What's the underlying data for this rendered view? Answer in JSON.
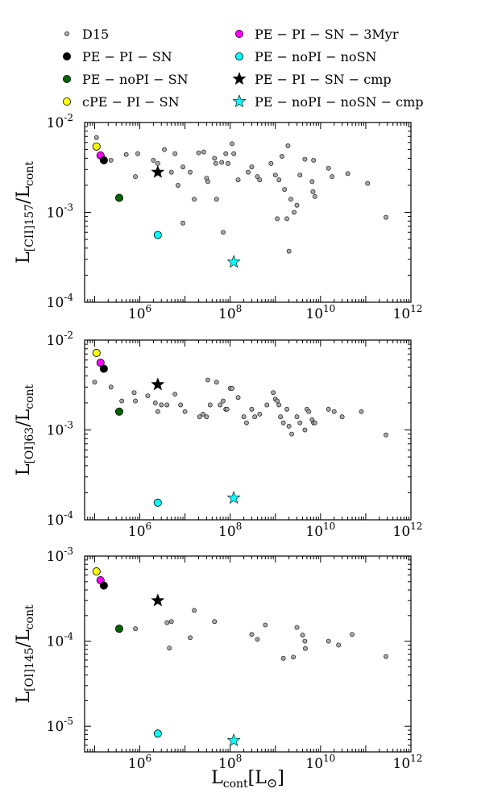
{
  "legend": [
    {
      "key": "d15",
      "label": "D15",
      "marker": "circle",
      "color": "#a9a9a9",
      "size": "small"
    },
    {
      "key": "pe_pi_sn_3myr",
      "label": "PE − PI − SN − 3Myr",
      "marker": "circle",
      "color": "#ff00ff",
      "size": "large"
    },
    {
      "key": "pe_pi_sn",
      "label": "PE − PI − SN",
      "marker": "circle",
      "color": "#000000",
      "size": "large"
    },
    {
      "key": "pe_nopi_nosn",
      "label": "PE − noPI − noSN",
      "marker": "circle",
      "color": "#00ffff",
      "size": "large"
    },
    {
      "key": "pe_nopi_sn",
      "label": "PE − noPI − SN",
      "marker": "circle",
      "color": "#006400",
      "size": "large"
    },
    {
      "key": "pe_pi_sn_cmp",
      "label": "PE − PI − SN − cmp",
      "marker": "star",
      "color": "#000000",
      "size": "large"
    },
    {
      "key": "cpe_pi_sn",
      "label": "cPE − PI − SN",
      "marker": "circle",
      "color": "#ffff00",
      "size": "large"
    },
    {
      "key": "pe_nopi_nosn_cmp",
      "label": "PE − noPI − noSN − cmp",
      "marker": "star",
      "color": "#00ffff",
      "size": "large"
    }
  ],
  "chart_data": [
    {
      "type": "scatter",
      "id": "cii157",
      "ylabel_main": "L",
      "ylabel_sub": "[CII]157",
      "ylabel_rest": "/L",
      "ylabel_rest_sub": "cont",
      "xscale": "log",
      "yscale": "log",
      "xlim": [
        60000,
        1000000000000
      ],
      "ylim": [
        0.0001,
        0.01
      ],
      "xticks": [
        "10^6",
        "10^8",
        "10^10",
        "10^12"
      ],
      "yticks": [
        "10^-4",
        "10^-3",
        "10^-2"
      ],
      "series": [
        {
          "key": "d15",
          "points": [
            [
              110000.0,
              0.0068
            ],
            [
              150000.0,
              0.0038
            ],
            [
              230000.0,
              0.0038
            ],
            [
              500000.0,
              0.0044
            ],
            [
              800000.0,
              0.0025
            ],
            [
              900000.0,
              0.0045
            ],
            [
              2000000.0,
              0.0038
            ],
            [
              2500000.0,
              0.0035
            ],
            [
              3500000.0,
              0.005
            ],
            [
              5000000.0,
              0.0028
            ],
            [
              7000000.0,
              0.002
            ],
            [
              13000000.0,
              0.0028
            ],
            [
              16000000.0,
              0.0014
            ],
            [
              20000000.0,
              0.0046
            ],
            [
              45000000.0,
              0.004
            ],
            [
              48000000.0,
              0.0035
            ],
            [
              50000000.0,
              0.0014
            ],
            [
              65000000.0,
              0.0036
            ],
            [
              6000000.0,
              0.0045
            ],
            [
              9000000.0,
              0.0032
            ],
            [
              26000000.0,
              0.0047
            ],
            [
              30000000.0,
              0.0024
            ],
            [
              32000000.0,
              0.0022
            ],
            [
              9000000.0,
              0.00076
            ],
            [
              70000000.0,
              0.0006
            ],
            [
              80000000.0,
              0.0045
            ],
            [
              90000000.0,
              0.0035
            ],
            [
              110000000.0,
              0.0058
            ],
            [
              120000000.0,
              0.0045
            ],
            [
              150000000.0,
              0.0023
            ],
            [
              250000000.0,
              0.0028
            ],
            [
              300000000.0,
              0.0032
            ],
            [
              400000000.0,
              0.0025
            ],
            [
              450000000.0,
              0.0023
            ],
            [
              800000000.0,
              0.0035
            ],
            [
              1000000000.0,
              0.0026
            ],
            [
              1100000000.0,
              0.00085
            ],
            [
              1200000000.0,
              0.0023
            ],
            [
              1400000000.0,
              0.0042
            ],
            [
              1600000000.0,
              0.0018
            ],
            [
              1800000000.0,
              0.00085
            ],
            [
              1900000000.0,
              0.0055
            ],
            [
              2000000000.0,
              0.00037
            ],
            [
              2200000000.0,
              0.0014
            ],
            [
              2600000000.0,
              0.001
            ],
            [
              3000000000.0,
              0.0012
            ],
            [
              3500000000.0,
              0.0026
            ],
            [
              4500000000.0,
              0.0039
            ],
            [
              6500000000.0,
              0.0022
            ],
            [
              6800000000.0,
              0.0017
            ],
            [
              7000000000.0,
              0.0038
            ],
            [
              7500000000.0,
              0.0015
            ],
            [
              15000000000.0,
              0.0031
            ],
            [
              18000000000.0,
              0.0025
            ],
            [
              40000000000.0,
              0.0027
            ],
            [
              110000000000.0,
              0.0021
            ],
            [
              280000000000.0,
              0.00088
            ]
          ]
        },
        {
          "key": "cpe_pi_sn",
          "points": [
            [
              110000.0,
              0.0054
            ]
          ]
        },
        {
          "key": "pe_pi_sn_3myr",
          "points": [
            [
              135000.0,
              0.0043
            ]
          ]
        },
        {
          "key": "pe_pi_sn",
          "points": [
            [
              160000.0,
              0.0038
            ]
          ]
        },
        {
          "key": "pe_nopi_sn",
          "points": [
            [
              350000.0,
              0.00145
            ]
          ]
        },
        {
          "key": "pe_nopi_nosn",
          "points": [
            [
              2500000.0,
              0.00056
            ]
          ]
        },
        {
          "key": "pe_pi_sn_cmp",
          "points": [
            [
              2500000.0,
              0.0028
            ]
          ]
        },
        {
          "key": "pe_nopi_nosn_cmp",
          "points": [
            [
              120000000.0,
              0.00028
            ]
          ]
        }
      ]
    },
    {
      "type": "scatter",
      "id": "oi63",
      "ylabel_main": "L",
      "ylabel_sub": "[OI]63",
      "ylabel_rest": "/L",
      "ylabel_rest_sub": "cont",
      "xscale": "log",
      "yscale": "log",
      "xlim": [
        60000,
        1000000000000
      ],
      "ylim": [
        0.0001,
        0.01
      ],
      "xticks": [
        "10^6",
        "10^8",
        "10^10",
        "10^12"
      ],
      "yticks": [
        "10^-4",
        "10^-3",
        "10^-2"
      ],
      "series": [
        {
          "key": "d15",
          "points": [
            [
              100000.0,
              0.0034
            ],
            [
              230000.0,
              0.003
            ],
            [
              400000.0,
              0.0021
            ],
            [
              750000.0,
              0.0026
            ],
            [
              800000.0,
              0.0021
            ],
            [
              1500000.0,
              0.0024
            ],
            [
              2200000.0,
              0.002
            ],
            [
              2500000.0,
              0.0016
            ],
            [
              3000000.0,
              0.0019
            ],
            [
              4000000.0,
              0.0019
            ],
            [
              6000000.0,
              0.0025
            ],
            [
              8000000.0,
              0.0019
            ],
            [
              10000000.0,
              0.0016
            ],
            [
              21000000.0,
              0.0014
            ],
            [
              25000000.0,
              0.0015
            ],
            [
              30000000.0,
              0.0014
            ],
            [
              32000000.0,
              0.0036
            ],
            [
              36000000.0,
              0.0019
            ],
            [
              50000000.0,
              0.0034
            ],
            [
              60000000.0,
              0.0019
            ],
            [
              70000000.0,
              0.0021
            ],
            [
              80000000.0,
              0.0017
            ],
            [
              85000000.0,
              0.0017
            ],
            [
              100000000.0,
              0.0029
            ],
            [
              110000000.0,
              0.0029
            ],
            [
              150000000.0,
              0.0023
            ],
            [
              200000000.0,
              0.0014
            ],
            [
              230000000.0,
              0.0012
            ],
            [
              300000000.0,
              0.0017
            ],
            [
              350000000.0,
              0.0014
            ],
            [
              450000000.0,
              0.0015
            ],
            [
              650000000.0,
              0.0019
            ],
            [
              900000000.0,
              0.0026
            ],
            [
              1000000000.0,
              0.0022
            ],
            [
              1100000000.0,
              0.0021
            ],
            [
              1200000000.0,
              0.0019
            ],
            [
              1300000000.0,
              0.0014
            ],
            [
              1500000000.0,
              0.0012
            ],
            [
              1800000000.0,
              0.0017
            ],
            [
              2000000000.0,
              0.0011
            ],
            [
              2300000000.0,
              0.0009
            ],
            [
              3000000000.0,
              0.0014
            ],
            [
              3500000000.0,
              0.0012
            ],
            [
              4500000000.0,
              0.001
            ],
            [
              5000000000.0,
              0.0017
            ],
            [
              5500000000.0,
              0.0016
            ],
            [
              6500000000.0,
              0.0013
            ],
            [
              7000000000.0,
              0.0012
            ],
            [
              7500000000.0,
              0.0012
            ],
            [
              15000000000.0,
              0.0017
            ],
            [
              20000000000.0,
              0.0016
            ],
            [
              30000000000.0,
              0.0014
            ],
            [
              80000000000.0,
              0.0016
            ],
            [
              280000000000.0,
              0.00088
            ]
          ]
        },
        {
          "key": "cpe_pi_sn",
          "points": [
            [
              110000.0,
              0.0072
            ]
          ]
        },
        {
          "key": "pe_pi_sn_3myr",
          "points": [
            [
              135000.0,
              0.0056
            ]
          ]
        },
        {
          "key": "pe_pi_sn",
          "points": [
            [
              160000.0,
              0.0048
            ]
          ]
        },
        {
          "key": "pe_nopi_sn",
          "points": [
            [
              350000.0,
              0.0016
            ]
          ]
        },
        {
          "key": "pe_nopi_nosn",
          "points": [
            [
              2500000.0,
              0.000155
            ]
          ]
        },
        {
          "key": "pe_pi_sn_cmp",
          "points": [
            [
              2500000.0,
              0.0032
            ]
          ]
        },
        {
          "key": "pe_nopi_nosn_cmp",
          "points": [
            [
              120000000.0,
              0.000175
            ]
          ]
        }
      ]
    },
    {
      "type": "scatter",
      "id": "oi145",
      "ylabel_main": "L",
      "ylabel_sub": "[OI]145",
      "ylabel_rest": "/L",
      "ylabel_rest_sub": "cont",
      "xlabel_main": "L",
      "xlabel_sub": "cont",
      "xlabel_rest": "[L",
      "xlabel_rest_sub": "⊙",
      "xlabel_end": "]",
      "xscale": "log",
      "yscale": "log",
      "xlim": [
        60000,
        1000000000000
      ],
      "ylim": [
        5e-06,
        0.001
      ],
      "xticks": [
        "10^6",
        "10^8",
        "10^10",
        "10^12"
      ],
      "yticks": [
        "10^-5",
        "10^-4",
        "10^-3"
      ],
      "series": [
        {
          "key": "d15",
          "points": [
            [
              800000.0,
              0.00014
            ],
            [
              4000000.0,
              0.000165
            ],
            [
              4500000.0,
              8.3e-05
            ],
            [
              5000000.0,
              0.00017
            ],
            [
              13000000.0,
              0.00011
            ],
            [
              16000000.0,
              0.00023
            ],
            [
              45000000.0,
              0.00017
            ],
            [
              300000000.0,
              0.00012
            ],
            [
              400000000.0,
              0.000105
            ],
            [
              600000000.0,
              0.000155
            ],
            [
              1500000000.0,
              6.3e-05
            ],
            [
              2500000000.0,
              6.5e-05
            ],
            [
              3000000000.0,
              0.000145
            ],
            [
              4000000000.0,
              0.000118
            ],
            [
              4500000000.0,
              0.0001
            ],
            [
              4600000000.0,
              8.2e-05
            ],
            [
              15000000000.0,
              0.0001
            ],
            [
              25000000000.0,
              9e-05
            ],
            [
              50000000000.0,
              0.00012
            ],
            [
              280000000000.0,
              6.6e-05
            ]
          ]
        },
        {
          "key": "cpe_pi_sn",
          "points": [
            [
              110000.0,
              0.00066
            ]
          ]
        },
        {
          "key": "pe_pi_sn_3myr",
          "points": [
            [
              135000.0,
              0.00052
            ]
          ]
        },
        {
          "key": "pe_pi_sn",
          "points": [
            [
              160000.0,
              0.00045
            ]
          ]
        },
        {
          "key": "pe_nopi_sn",
          "points": [
            [
              350000.0,
              0.00014
            ]
          ]
        },
        {
          "key": "pe_nopi_nosn",
          "points": [
            [
              2500000.0,
              8.2e-06
            ]
          ]
        },
        {
          "key": "pe_pi_sn_cmp",
          "points": [
            [
              2500000.0,
              0.0003
            ]
          ]
        },
        {
          "key": "pe_nopi_nosn_cmp",
          "points": [
            [
              120000000.0,
              6.8e-06
            ]
          ]
        }
      ]
    }
  ]
}
